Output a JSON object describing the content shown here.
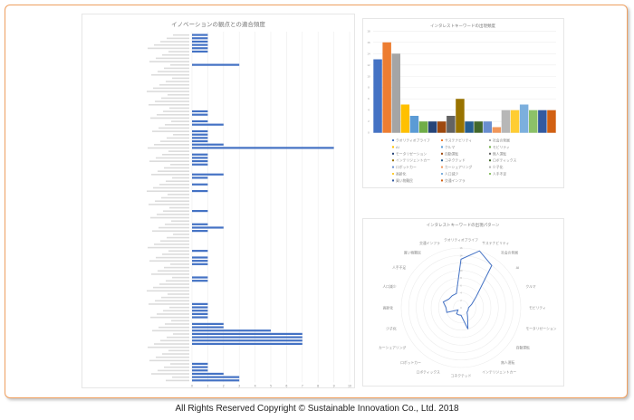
{
  "footer": "All Rights Reserved  Copyright © Sustainable Innovation  Co., Ltd.  2018",
  "chart_data": [
    {
      "type": "bar",
      "orientation": "horizontal",
      "title": "イノベーションの観点との適合頻度",
      "xlim": [
        0,
        10
      ],
      "xticks": [
        "0",
        "1",
        "2",
        "3",
        "4",
        "5",
        "6",
        "7",
        "8",
        "9",
        "10"
      ],
      "grid": true,
      "bar_color": "#4472C4",
      "category_count": 105,
      "values": [
        1,
        1,
        1,
        1,
        1,
        1,
        0,
        0,
        0,
        3,
        0,
        0,
        0,
        0,
        0,
        0,
        0,
        0,
        0,
        0,
        0,
        0,
        0,
        1,
        1,
        0,
        1,
        2,
        0,
        1,
        1,
        1,
        1,
        2,
        9,
        0,
        1,
        1,
        1,
        1,
        0,
        0,
        2,
        1,
        0,
        1,
        0,
        1,
        0,
        0,
        0,
        0,
        0,
        1,
        0,
        0,
        0,
        1,
        2,
        1,
        0,
        0,
        0,
        0,
        0,
        1,
        0,
        1,
        1,
        1,
        0,
        0,
        0,
        1,
        1,
        0,
        0,
        0,
        0,
        0,
        0,
        1,
        1,
        1,
        1,
        1,
        0,
        2,
        2,
        5,
        7,
        7,
        7,
        7,
        0,
        0,
        0,
        0,
        0,
        1,
        1,
        1,
        2,
        3,
        3
      ]
    },
    {
      "type": "bar",
      "title": "インタレストキーワードの出現頻度",
      "ylim": [
        0,
        18
      ],
      "yticks": [
        "0",
        "2",
        "4",
        "6",
        "8",
        "10",
        "12",
        "14",
        "16",
        "18"
      ],
      "grid": true,
      "legend": "bottom",
      "categories": [
        "クオリティオブライフ",
        "サステナビリティ",
        "社会の発展",
        "AI",
        "クルマ",
        "モビリティ",
        "モータリゼーション",
        "自動運転",
        "無人運転",
        "インテリジェントカー",
        "コネクテッド",
        "ロボティックス",
        "ロボットカー",
        "カーシェアリング",
        "少子化",
        "高齢化",
        "人口減少",
        "人手不足",
        "買い物難民",
        "交通インフラ"
      ],
      "values": [
        13,
        16,
        14,
        5,
        3,
        2,
        2,
        2,
        3,
        6,
        2,
        2,
        2,
        1,
        4,
        4,
        5,
        4,
        4,
        4
      ],
      "colors": [
        "#4472C4",
        "#ED7D31",
        "#A5A5A5",
        "#FFC000",
        "#5B9BD5",
        "#70AD47",
        "#264478",
        "#9E480E",
        "#636363",
        "#997300",
        "#255E91",
        "#43682B",
        "#698ED0",
        "#F1975A",
        "#B7B7B7",
        "#FFCD33",
        "#7CAFDD",
        "#8CC168",
        "#335AA1",
        "#D26012"
      ]
    },
    {
      "type": "radar",
      "title": "インタレストキーワードの出現パターン",
      "rlim": [
        0,
        16
      ],
      "rticks": [
        "0",
        "2",
        "4",
        "6",
        "8",
        "10",
        "12",
        "14",
        "16"
      ],
      "line_color": "#4472C4",
      "categories": [
        "クオリティオブライフ",
        "サステナビリティ",
        "社会の発展",
        "AI",
        "クルマ",
        "モビリティ",
        "モータリゼーション",
        "自動運転",
        "無人運転",
        "インテリジェントカー",
        "コネクテッド",
        "ロボティックス",
        "ロボットカー",
        "カーシェアリング",
        "少子化",
        "高齢化",
        "人口減少",
        "人手不足",
        "買い物難民",
        "交通インフラ"
      ],
      "values": [
        13,
        16,
        14,
        5,
        3,
        2,
        2,
        2,
        3,
        6,
        2,
        2,
        2,
        1,
        4,
        4,
        5,
        4,
        4,
        4
      ]
    }
  ]
}
